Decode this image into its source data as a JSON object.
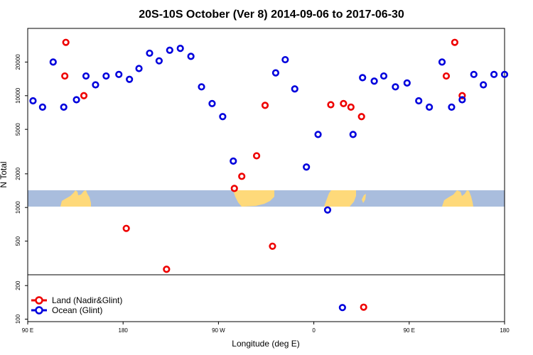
{
  "chart_data": {
    "type": "scatter",
    "title": "20S-10S October (Ver 8)   2014-09-06 to 2017-06-30",
    "xlabel": "Longitude (deg E)",
    "ylabel": "N Total",
    "xlim": [
      90,
      540
    ],
    "x_ticks": [
      {
        "value": 90,
        "label": "90 E"
      },
      {
        "value": 180,
        "label": "180"
      },
      {
        "value": 270,
        "label": "90 W"
      },
      {
        "value": 360,
        "label": "0"
      },
      {
        "value": 450,
        "label": "90 E"
      },
      {
        "value": 540,
        "label": "180"
      }
    ],
    "y_scale": "log",
    "panels": [
      {
        "name": "upper",
        "ylim": [
          250,
          40000
        ],
        "ticks": [
          500,
          1000,
          2000,
          5000,
          10000,
          20000
        ]
      },
      {
        "name": "lower",
        "ylim": [
          95,
          250
        ],
        "ticks": [
          100,
          200
        ]
      }
    ],
    "grid": false,
    "legend_position": "bottom-left",
    "series": [
      {
        "name": "Land (Nadir&Glint)",
        "color": "#ee0000",
        "points": [
          [
            126,
            30000
          ],
          [
            125,
            15000
          ],
          [
            143,
            10000
          ],
          [
            183,
            650
          ],
          [
            221,
            280
          ],
          [
            285,
            1480
          ],
          [
            292,
            1900
          ],
          [
            306,
            2900
          ],
          [
            314,
            8200
          ],
          [
            321,
            450
          ],
          [
            376,
            8300
          ],
          [
            388,
            8500
          ],
          [
            395,
            7900
          ],
          [
            405,
            6500
          ],
          [
            407,
            128
          ],
          [
            485,
            15000
          ],
          [
            493,
            30000
          ],
          [
            500,
            10000
          ]
        ]
      },
      {
        "name": "Ocean (Glint)",
        "color": "#0000dd",
        "points": [
          [
            95,
            9000
          ],
          [
            104,
            7900
          ],
          [
            114,
            20000
          ],
          [
            124,
            7900
          ],
          [
            136,
            9200
          ],
          [
            145,
            15000
          ],
          [
            154,
            12500
          ],
          [
            164,
            15000
          ],
          [
            176,
            15500
          ],
          [
            186,
            14000
          ],
          [
            195,
            17500
          ],
          [
            205,
            24000
          ],
          [
            214,
            20500
          ],
          [
            224,
            25500
          ],
          [
            234,
            26500
          ],
          [
            244,
            22500
          ],
          [
            254,
            12000
          ],
          [
            264,
            8500
          ],
          [
            274,
            6500
          ],
          [
            284,
            2600
          ],
          [
            324,
            16000
          ],
          [
            333,
            21000
          ],
          [
            342,
            11500
          ],
          [
            353,
            2300
          ],
          [
            364,
            4500
          ],
          [
            373,
            950
          ],
          [
            387,
            127
          ],
          [
            397,
            4500
          ],
          [
            406,
            14500
          ],
          [
            417,
            13500
          ],
          [
            426,
            15000
          ],
          [
            437,
            12000
          ],
          [
            448,
            13000
          ],
          [
            459,
            9000
          ],
          [
            469,
            7900
          ],
          [
            481,
            20000
          ],
          [
            490,
            7900
          ],
          [
            500,
            9200
          ],
          [
            511,
            15500
          ],
          [
            520,
            12500
          ],
          [
            530,
            15500
          ],
          [
            540,
            15500
          ]
        ]
      }
    ]
  }
}
